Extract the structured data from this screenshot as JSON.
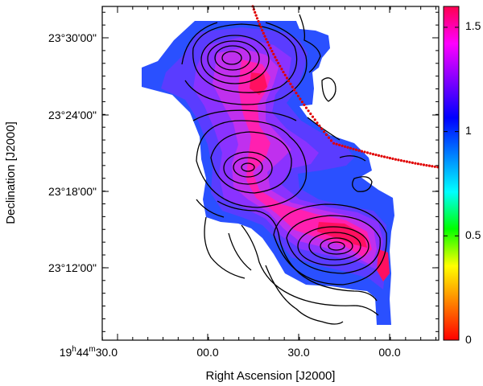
{
  "chart_data": {
    "type": "heatmap",
    "xlabel": "Right Ascension [J2000]",
    "ylabel": "Declination [J2000]",
    "x_ticks": [
      {
        "hms": "19 44 30.0",
        "label_main": "19",
        "label_sup1": "h",
        "label_mid": "44",
        "label_sup2": "m",
        "label_end": "30.0"
      },
      {
        "hms": "19 44 00.0",
        "label_main": "00.0"
      },
      {
        "hms": "19 43 30.0",
        "label_main": "30.0"
      },
      {
        "hms": "19 43 00.0",
        "label_main": "00.0"
      }
    ],
    "y_ticks": [
      "23°30'00\"",
      "23°24'00\"",
      "23°18'00\"",
      "23°12'00\""
    ],
    "y_tick_values_deg": [
      23.5,
      23.4,
      23.3,
      23.2
    ],
    "colorbar": {
      "ticks": [
        "1.5",
        "1",
        "0.5",
        "0"
      ],
      "tick_values": [
        1.5,
        1.0,
        0.5,
        0.0
      ],
      "range": [
        0,
        1.6
      ],
      "colormap": [
        "#ff0000",
        "#ff8000",
        "#ffff00",
        "#00ff00",
        "#00ffff",
        "#0080ff",
        "#0000ff",
        "#8000ff",
        "#ff00ff",
        "#ff0050"
      ]
    },
    "fill_levels": [
      {
        "level": 1.05,
        "color": "#2a50ff"
      },
      {
        "level": 1.15,
        "color": "#5a3cff"
      },
      {
        "level": 1.25,
        "color": "#8a32ff"
      },
      {
        "level": 1.35,
        "color": "#c030ee"
      },
      {
        "level": 1.45,
        "color": "#ff20b0"
      },
      {
        "level": 1.55,
        "color": "#ff1060"
      }
    ],
    "overlay_curve_color": "#e00000",
    "contour_color": "#000000"
  }
}
